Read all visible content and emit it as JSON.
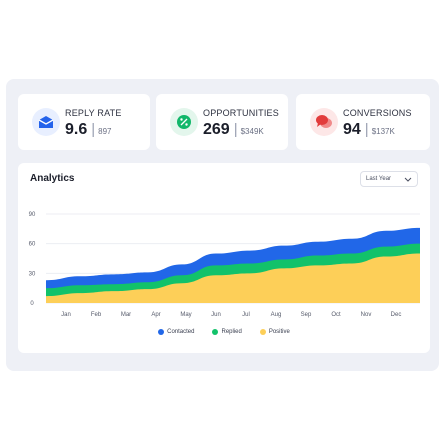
{
  "stats": [
    {
      "label": "REPLY RATE",
      "value": "9.6",
      "sub": "897",
      "icon": "envelope-icon",
      "icon_bg": "#e8efff",
      "icon_color": "#2563eb"
    },
    {
      "label": "OPPORTUNITIES",
      "value": "269",
      "sub": "$349K",
      "icon": "percent-icon",
      "icon_bg": "#e3f6ec",
      "icon_color": "#12b76a"
    },
    {
      "label": "CONVERSIONS",
      "value": "94",
      "sub": "$137K",
      "icon": "chat-bubbles-icon",
      "icon_bg": "#fde7e7",
      "icon_color": "#e23c3c"
    }
  ],
  "analytics": {
    "title": "Analytics",
    "range_label": "Last Year"
  },
  "chart_data": {
    "type": "area",
    "stacked": true,
    "categories": [
      "Jan",
      "Feb",
      "Mar",
      "Apr",
      "May",
      "Jun",
      "Jul",
      "Aug",
      "Sep",
      "Oct",
      "Nov",
      "Dec"
    ],
    "ylim": [
      0,
      90
    ],
    "yticks": [
      0,
      30,
      60,
      90
    ],
    "grid": true,
    "legend_position": "bottom-center",
    "series": [
      {
        "name": "Positive",
        "color": "#fdcf58",
        "values": [
          7,
          10,
          12,
          14,
          20,
          28,
          30,
          35,
          38,
          40,
          47,
          50
        ]
      },
      {
        "name": "Replied",
        "color": "#12c26a",
        "values": [
          8,
          8,
          7,
          7,
          8,
          10,
          10,
          9,
          10,
          10,
          10,
          10
        ]
      },
      {
        "name": "Contacted",
        "color": "#2167e8",
        "values": [
          8,
          9,
          10,
          10,
          11,
          12,
          13,
          14,
          14,
          15,
          16,
          16
        ]
      }
    ],
    "totals_note": ""
  },
  "colors": {
    "panel_bg": "#eef0f6",
    "card_bg": "#ffffff"
  }
}
